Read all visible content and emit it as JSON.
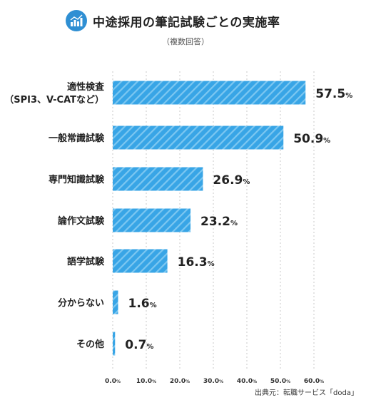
{
  "title": "中途採用の筆記試験ごとの実施率",
  "subtitle": "（複数回答）",
  "source": "出典元：転職サービス「doda」",
  "colors": {
    "bar": "#38a5e6",
    "accent": "#2f8fd3",
    "grid": "#c8c8c8"
  },
  "icon": "bar-chart-icon",
  "chart_data": {
    "type": "bar",
    "orientation": "horizontal",
    "categories": [
      [
        "適性検査",
        "（SPI3、V-CATなど）"
      ],
      [
        "一般常識試験"
      ],
      [
        "専門知識試験"
      ],
      [
        "論作文試験"
      ],
      [
        "語学試験"
      ],
      [
        "分からない"
      ],
      [
        "その他"
      ]
    ],
    "values": [
      57.5,
      50.9,
      26.9,
      23.2,
      16.3,
      1.6,
      0.7
    ],
    "value_labels": [
      {
        "num": "57.5",
        "unit": "%"
      },
      {
        "num": "50.9",
        "unit": "%"
      },
      {
        "num": "26.9",
        "unit": "%"
      },
      {
        "num": "23.2",
        "unit": "%"
      },
      {
        "num": "16.3",
        "unit": "%"
      },
      {
        "num": "1.6",
        "unit": "%"
      },
      {
        "num": "0.7",
        "unit": "%"
      }
    ],
    "xlim": [
      0,
      60
    ],
    "ticks": [
      {
        "num": "0.0",
        "unit": "%"
      },
      {
        "num": "10.0",
        "unit": "%"
      },
      {
        "num": "20.0",
        "unit": "%"
      },
      {
        "num": "30.0",
        "unit": "%"
      },
      {
        "num": "40.0",
        "unit": "%"
      },
      {
        "num": "50.0",
        "unit": "%"
      },
      {
        "num": "60.0",
        "unit": "%"
      }
    ],
    "tick_values": [
      0,
      10,
      20,
      30,
      40,
      50,
      60
    ],
    "grid": true
  }
}
